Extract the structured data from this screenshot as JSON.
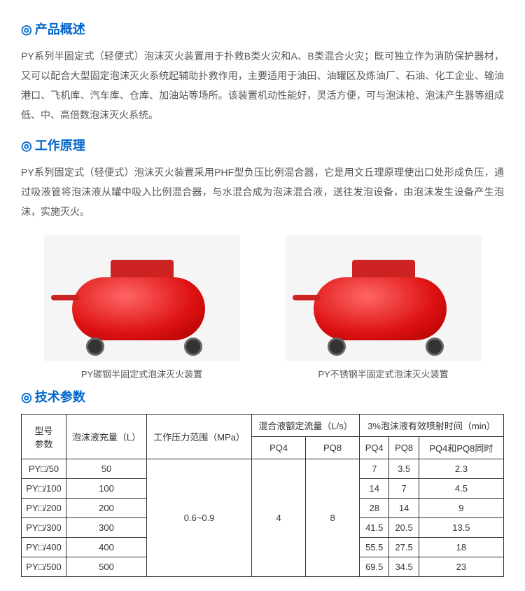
{
  "sections": {
    "overview": {
      "title": "产品概述",
      "text": "PY系列半固定式（轻便式）泡沫灭火装置用于扑救B类火灾和A、B类混合火灾；既可独立作为消防保护器材，又可以配合大型固定泡沫灭火系统起辅助扑救作用，主要适用于油田、油罐区及炼油厂、石油、化工企业、输油港口、飞机库、汽车库、仓库、加油站等场所。该装置机动性能好，灵活方便，可与泡沫枪、泡沫产生器等组成低、中、高倍数泡沫灭火系统。"
    },
    "principle": {
      "title": "工作原理",
      "text": "PY系列固定式（轻便式）泡沫灭火装置采用PHF型负压比例混合器，它是用文丘理原理使出口处形成负压，通过吸液管将泡沫液从罐中吸入比例混合器，与水混合成为泡沫混合液，送往发泡设备，由泡沫发生设备产生泡沫，实施灭火。"
    },
    "params": {
      "title": "技术参数"
    }
  },
  "images": {
    "left_caption": "PY碳钢半固定式泡沫灭火装置",
    "right_caption": "PY不锈钢半固定式泡沫灭火装置"
  },
  "table": {
    "headers": {
      "model": "型号\n参数",
      "foam_volume": "泡沫液充量（L）",
      "pressure": "工作压力范围（MPa）",
      "flow_rate": "混合液额定流量（L/s）",
      "spray_time": "3%泡沫液有效喷射时间（min）",
      "pq4": "PQ4",
      "pq8": "PQ8",
      "pq4_2": "PQ4",
      "pq8_2": "PQ8",
      "both": "PQ4和PQ8同时"
    },
    "shared": {
      "pressure_val": "0.6~0.9",
      "pq4_flow": "4",
      "pq8_flow": "8"
    },
    "rows": [
      {
        "model": "PY□/50",
        "volume": "50",
        "t_pq4": "7",
        "t_pq8": "3.5",
        "t_both": "2.3"
      },
      {
        "model": "PY□/100",
        "volume": "100",
        "t_pq4": "14",
        "t_pq8": "7",
        "t_both": "4.5"
      },
      {
        "model": "PY□/200",
        "volume": "200",
        "t_pq4": "28",
        "t_pq8": "14",
        "t_both": "9"
      },
      {
        "model": "PY□/300",
        "volume": "300",
        "t_pq4": "41.5",
        "t_pq8": "20.5",
        "t_both": "13.5"
      },
      {
        "model": "PY□/400",
        "volume": "400",
        "t_pq4": "55.5",
        "t_pq8": "27.5",
        "t_both": "18"
      },
      {
        "model": "PY□/500",
        "volume": "500",
        "t_pq4": "69.5",
        "t_pq8": "34.5",
        "t_both": "23"
      }
    ]
  },
  "styling": {
    "title_color": "#0066cc",
    "text_color": "#555555",
    "border_color": "#333333",
    "tank_color": "#dd1111",
    "background": "#ffffff"
  }
}
